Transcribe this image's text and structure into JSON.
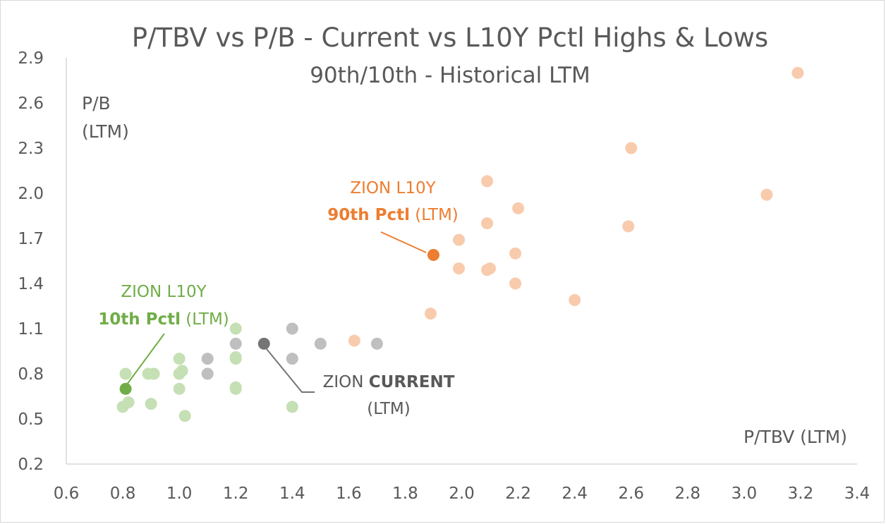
{
  "chart_data": {
    "type": "scatter",
    "title": "P/TBV vs P/B - Current vs L10Y Pctl Highs & Lows",
    "subtitle": "90th/10th - Historical LTM",
    "xlabel": "P/TBV (LTM)",
    "ylabel_line1": "P/B",
    "ylabel_line2": "(LTM)",
    "xlim": [
      0.6,
      3.4
    ],
    "ylim": [
      0.2,
      2.9
    ],
    "x_ticks": [
      "0.6",
      "0.8",
      "1.0",
      "1.2",
      "1.4",
      "1.6",
      "1.8",
      "2.0",
      "2.2",
      "2.4",
      "2.6",
      "2.8",
      "3.0",
      "3.2",
      "3.4"
    ],
    "y_ticks": [
      "0.2",
      "0.5",
      "0.8",
      "1.1",
      "1.4",
      "1.7",
      "2.0",
      "2.3",
      "2.6",
      "2.9"
    ],
    "grid": false,
    "colors": {
      "low_peer": "#c5e0b4",
      "low_zion": "#70ad47",
      "mid_peer": "#bfbfbf",
      "mid_zion": "#757575",
      "high_peer": "#f8cbad",
      "high_zion": "#ed7d31",
      "axis": "#d9d9d9",
      "text": "#595959"
    },
    "series": [
      {
        "key": "low",
        "points": [
          [
            0.8,
            0.58
          ],
          [
            0.81,
            0.8
          ],
          [
            0.82,
            0.61
          ],
          [
            0.89,
            0.8
          ],
          [
            0.9,
            0.6
          ],
          [
            0.91,
            0.8
          ],
          [
            1.0,
            0.7
          ],
          [
            1.0,
            0.8
          ],
          [
            1.0,
            0.9
          ],
          [
            1.01,
            0.82
          ],
          [
            1.02,
            0.52
          ],
          [
            1.2,
            0.7
          ],
          [
            1.2,
            0.9
          ],
          [
            1.2,
            1.1
          ],
          [
            1.2,
            0.91
          ],
          [
            1.2,
            0.71
          ],
          [
            1.4,
            0.58
          ]
        ]
      },
      {
        "key": "mid",
        "points": [
          [
            1.1,
            0.8
          ],
          [
            1.1,
            0.9
          ],
          [
            1.2,
            1.0
          ],
          [
            1.4,
            1.1
          ],
          [
            1.4,
            0.9
          ],
          [
            1.5,
            1.0
          ],
          [
            1.7,
            1.0
          ]
        ]
      },
      {
        "key": "high",
        "points": [
          [
            1.62,
            1.02
          ],
          [
            1.89,
            1.2
          ],
          [
            1.99,
            1.69
          ],
          [
            1.99,
            1.5
          ],
          [
            2.09,
            2.08
          ],
          [
            2.09,
            1.8
          ],
          [
            2.09,
            1.49
          ],
          [
            2.1,
            1.5
          ],
          [
            2.19,
            1.6
          ],
          [
            2.19,
            1.4
          ],
          [
            2.2,
            1.9
          ],
          [
            2.4,
            1.29
          ],
          [
            2.59,
            1.78
          ],
          [
            2.6,
            2.3
          ],
          [
            3.08,
            1.99
          ],
          [
            3.19,
            2.8
          ]
        ]
      }
    ],
    "highlights": [
      {
        "key": "low_zion",
        "x": 0.81,
        "y": 0.7
      },
      {
        "key": "mid_zion",
        "x": 1.3,
        "y": 1.0
      },
      {
        "key": "high_zion",
        "x": 1.9,
        "y": 1.59
      }
    ],
    "annotations": {
      "high": {
        "line1": "ZION L10Y",
        "line2_bold": "90th Pctl",
        "line2_rest": " (LTM)"
      },
      "low": {
        "line1": "ZION L10Y",
        "line2_bold": "10th Pctl",
        "line2_rest": " (LTM)"
      },
      "current": {
        "line1_plain": "ZION ",
        "line1_bold": "CURRENT",
        "line2": "(LTM)"
      }
    }
  }
}
